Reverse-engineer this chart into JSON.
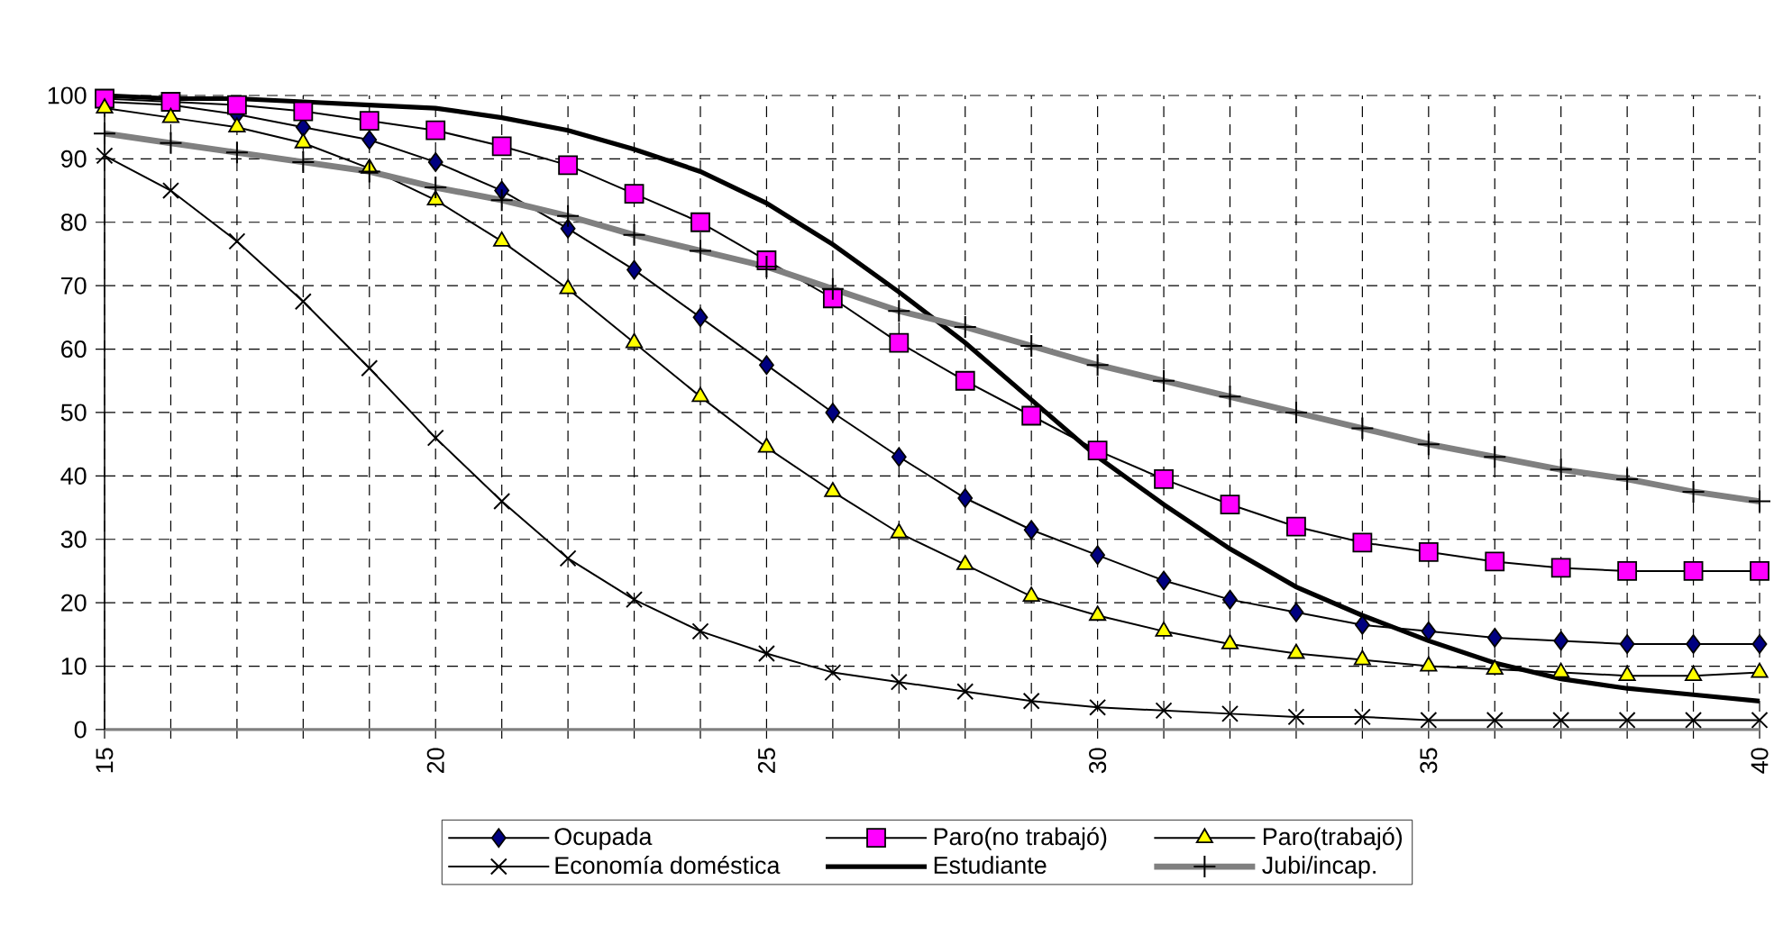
{
  "chart_data": {
    "type": "line",
    "x": [
      15,
      16,
      17,
      18,
      19,
      20,
      21,
      22,
      23,
      24,
      25,
      26,
      27,
      28,
      29,
      30,
      31,
      32,
      33,
      34,
      35,
      36,
      37,
      38,
      39,
      40
    ],
    "series": [
      {
        "name": "Ocupada",
        "color": "#000080",
        "marker": "diamond",
        "values": [
          99,
          98.5,
          97,
          95,
          93,
          89.5,
          85,
          79,
          72.5,
          65,
          57.5,
          50,
          43,
          36.5,
          31.5,
          27.5,
          23.5,
          20.5,
          18.5,
          16.5,
          15.5,
          14.5,
          14,
          13.5,
          13.5,
          13.5
        ]
      },
      {
        "name": "Paro(no trabajó)",
        "color": "#ff00ff",
        "marker": "square",
        "values": [
          99.5,
          99,
          98.5,
          97.5,
          96,
          94.5,
          92,
          89,
          84.5,
          80,
          74,
          68,
          61,
          55,
          49.5,
          44,
          39.5,
          35.5,
          32,
          29.5,
          28,
          26.5,
          25.5,
          25,
          25,
          25
        ]
      },
      {
        "name": "Paro(trabajó)",
        "color": "#ffff00",
        "marker": "triangle",
        "values": [
          98,
          96.5,
          95,
          92.5,
          88.5,
          83.5,
          77,
          69.5,
          61,
          52.5,
          44.5,
          37.5,
          31,
          26,
          21,
          18,
          15.5,
          13.5,
          12,
          11,
          10,
          9.5,
          9,
          8.5,
          8.5,
          9
        ]
      },
      {
        "name": "Economía doméstica",
        "color": "#000000",
        "marker": "cross",
        "values": [
          90.5,
          85,
          77,
          67.5,
          57,
          46,
          36,
          27,
          20.5,
          15.5,
          12,
          9,
          7.5,
          6,
          4.5,
          3.5,
          3,
          2.5,
          2,
          2,
          1.5,
          1.5,
          1.5,
          1.5,
          1.5,
          1.5
        ]
      },
      {
        "name": "Estudiante",
        "color": "#000000",
        "marker": "none",
        "values": [
          100,
          99.5,
          99.5,
          99,
          98.5,
          98,
          96.5,
          94.5,
          91.5,
          88,
          83,
          76.5,
          69,
          61,
          52,
          43,
          35.5,
          28.5,
          22.5,
          18,
          14,
          10.5,
          8,
          6.5,
          5.5,
          4.5
        ]
      },
      {
        "name": "Jubi/incap.",
        "color": "#808080",
        "marker": "plus",
        "values": [
          94,
          92.5,
          91,
          89.5,
          88,
          85.5,
          83.5,
          81,
          78,
          75.5,
          73,
          69.5,
          66,
          63.5,
          60.5,
          57.5,
          55,
          52.5,
          50,
          47.5,
          45,
          43,
          41,
          39.5,
          37.5,
          36
        ]
      }
    ],
    "xlim": [
      15,
      40
    ],
    "xticks": [
      15,
      {
        "value": 16,
        "label": null
      },
      {
        "value": 17,
        "label": null
      },
      {
        "value": 18,
        "label": null
      },
      {
        "value": 19,
        "label": null
      },
      20,
      {
        "value": 21,
        "label": null
      },
      {
        "value": 22,
        "label": null
      },
      {
        "value": 23,
        "label": null
      },
      {
        "value": 24,
        "label": null
      },
      25,
      {
        "value": 26,
        "label": null
      },
      {
        "value": 27,
        "label": null
      },
      {
        "value": 28,
        "label": null
      },
      {
        "value": 29,
        "label": null
      },
      30,
      {
        "value": 31,
        "label": null
      },
      {
        "value": 32,
        "label": null
      },
      {
        "value": 33,
        "label": null
      },
      {
        "value": 34,
        "label": null
      },
      35,
      {
        "value": 36,
        "label": null
      },
      {
        "value": 37,
        "label": null
      },
      {
        "value": 38,
        "label": null
      },
      {
        "value": 39,
        "label": null
      },
      40
    ],
    "ylim": [
      0,
      100
    ],
    "yticks": [
      0,
      10,
      20,
      30,
      40,
      50,
      60,
      70,
      80,
      90,
      100
    ],
    "grid": true,
    "legend": "bottom"
  }
}
